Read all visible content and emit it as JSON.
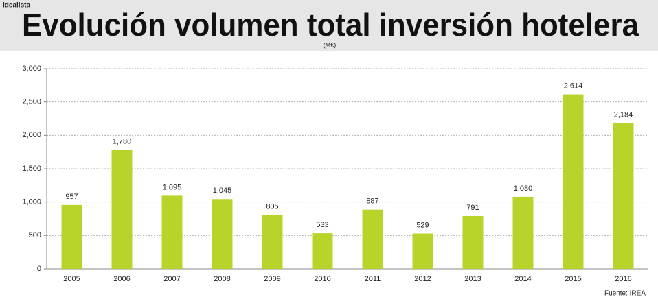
{
  "chart_data": {
    "type": "bar",
    "brand": "idealista",
    "title": "Evolución volumen total inversión hotelera",
    "subtitle": "(M€)",
    "categories": [
      "2005",
      "2006",
      "2007",
      "2008",
      "2009",
      "2010",
      "2011",
      "2012",
      "2013",
      "2014",
      "2015",
      "2016"
    ],
    "values": [
      957,
      1780,
      1095,
      1045,
      805,
      533,
      887,
      529,
      791,
      1080,
      2614,
      2184
    ],
    "value_labels": [
      "957",
      "1,780",
      "1,095",
      "1,045",
      "805",
      "533",
      "887",
      "529",
      "791",
      "1,080",
      "2,614",
      "2,184"
    ],
    "color": "#b8d42a",
    "ylim": [
      0,
      3000
    ],
    "yticks": [
      0,
      500,
      {
        "value": 1000,
        "label": "1,000"
      },
      {
        "value": 1500,
        "label": "1,500"
      },
      {
        "value": 2000,
        "label": "2,000"
      },
      {
        "value": 2500,
        "label": "2,500"
      },
      {
        "value": 3000,
        "label": "3,000"
      }
    ],
    "grid": true,
    "source": "Fuente: IREA"
  }
}
